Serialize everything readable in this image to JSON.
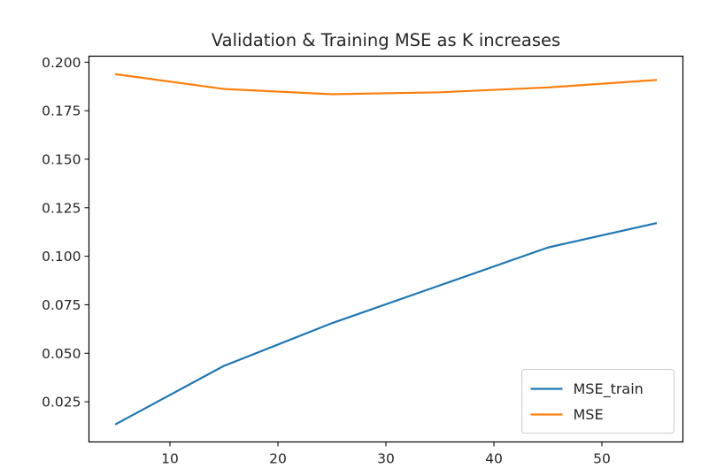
{
  "chart_data": {
    "type": "line",
    "title": "Validation & Training MSE as K increases",
    "xlabel": "",
    "ylabel": "",
    "x": [
      5,
      15,
      25,
      35,
      45,
      55
    ],
    "series": [
      {
        "name": "MSE_train",
        "color": "#1f77b4",
        "values": [
          0.0135,
          0.0435,
          0.0655,
          0.085,
          0.1045,
          0.117
        ]
      },
      {
        "name": "MSE",
        "color": "#ff7f0e",
        "values": [
          0.1938,
          0.1862,
          0.1835,
          0.1845,
          0.187,
          0.1908
        ]
      }
    ],
    "xlim": [
      2.5,
      57.5
    ],
    "ylim": [
      0.0043,
      0.2031
    ],
    "xticks": [
      10,
      20,
      30,
      40,
      50
    ],
    "yticks": [
      0.025,
      0.05,
      0.075,
      0.1,
      0.125,
      0.15,
      0.175,
      0.2
    ],
    "xtick_labels": [
      "10",
      "20",
      "30",
      "40",
      "50"
    ],
    "ytick_labels": [
      "0.025",
      "0.050",
      "0.075",
      "0.100",
      "0.125",
      "0.150",
      "0.175",
      "0.200"
    ],
    "grid": false,
    "legend_position": "lower-right"
  }
}
